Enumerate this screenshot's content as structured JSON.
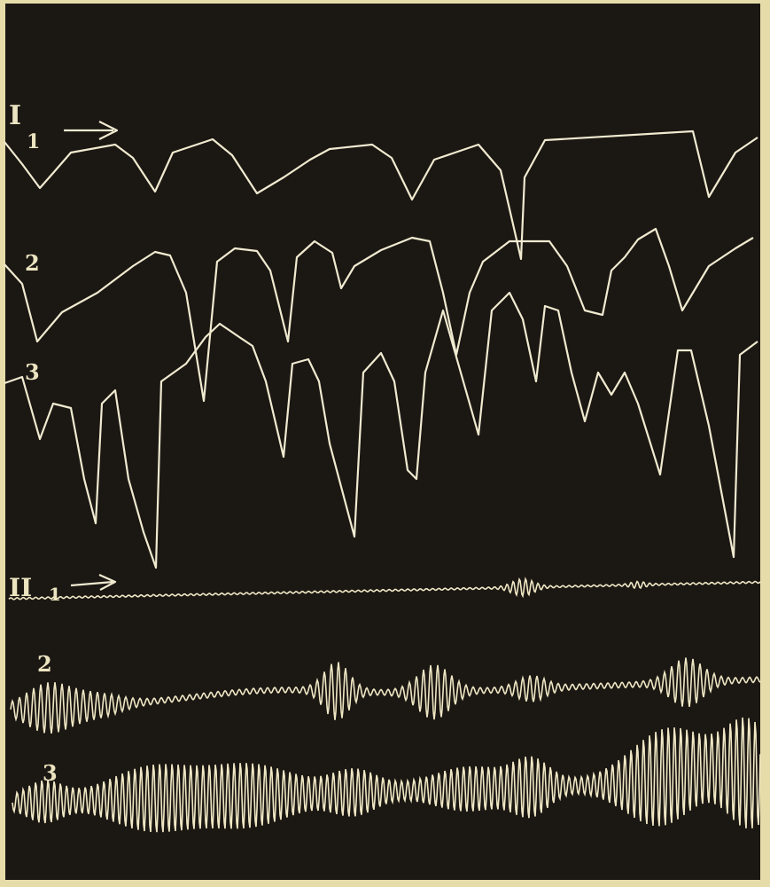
{
  "panels": [
    {
      "label": "I",
      "traces": [
        "1",
        "2",
        "3"
      ]
    },
    {
      "label": "II",
      "traces": [
        "1",
        "2",
        "3"
      ]
    }
  ]
}
